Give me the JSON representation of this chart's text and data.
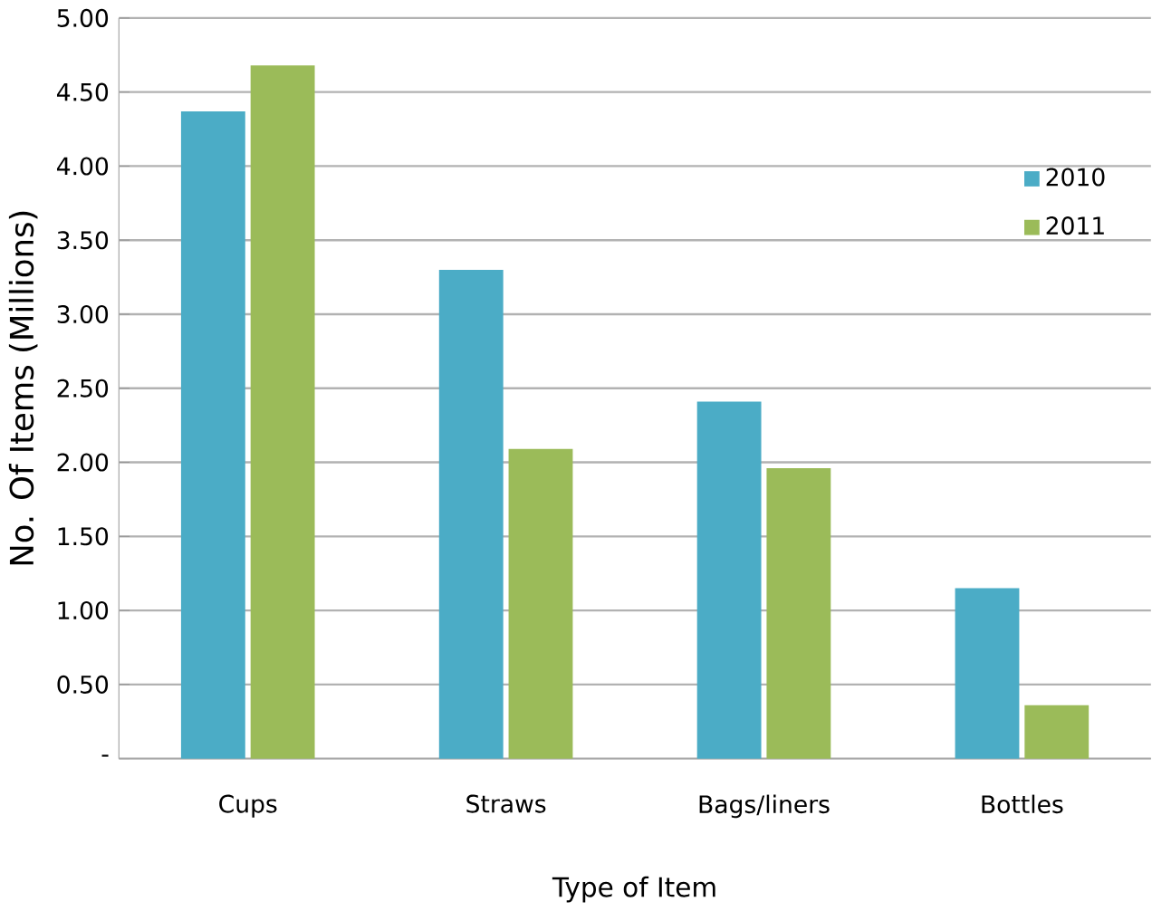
{
  "chart_data": {
    "type": "bar",
    "xlabel": "Type of Item",
    "ylabel": "No. Of Items (Millions)",
    "categories": [
      "Cups",
      "Straws",
      "Bags/liners",
      "Bottles"
    ],
    "series": [
      {
        "name": "2010",
        "color": "#4bacc6",
        "values": [
          4.37,
          3.3,
          2.41,
          1.15
        ]
      },
      {
        "name": "2011",
        "color": "#9bbb59",
        "values": [
          4.68,
          2.09,
          1.96,
          0.36
        ]
      }
    ],
    "ylim": [
      0,
      5
    ],
    "yticks": [
      {
        "value": 0,
        "label": "-"
      },
      {
        "value": 0.5,
        "label": "0.50"
      },
      {
        "value": 1,
        "label": "1.00"
      },
      {
        "value": 1.5,
        "label": "1.50"
      },
      {
        "value": 2,
        "label": "2.00"
      },
      {
        "value": 2.5,
        "label": "2.50"
      },
      {
        "value": 3,
        "label": "3.00"
      },
      {
        "value": 3.5,
        "label": "3.50"
      },
      {
        "value": 4,
        "label": "4.00"
      },
      {
        "value": 4.5,
        "label": "4.50"
      },
      {
        "value": 5,
        "label": "5.00"
      }
    ],
    "grid": "y",
    "legend": "right"
  }
}
